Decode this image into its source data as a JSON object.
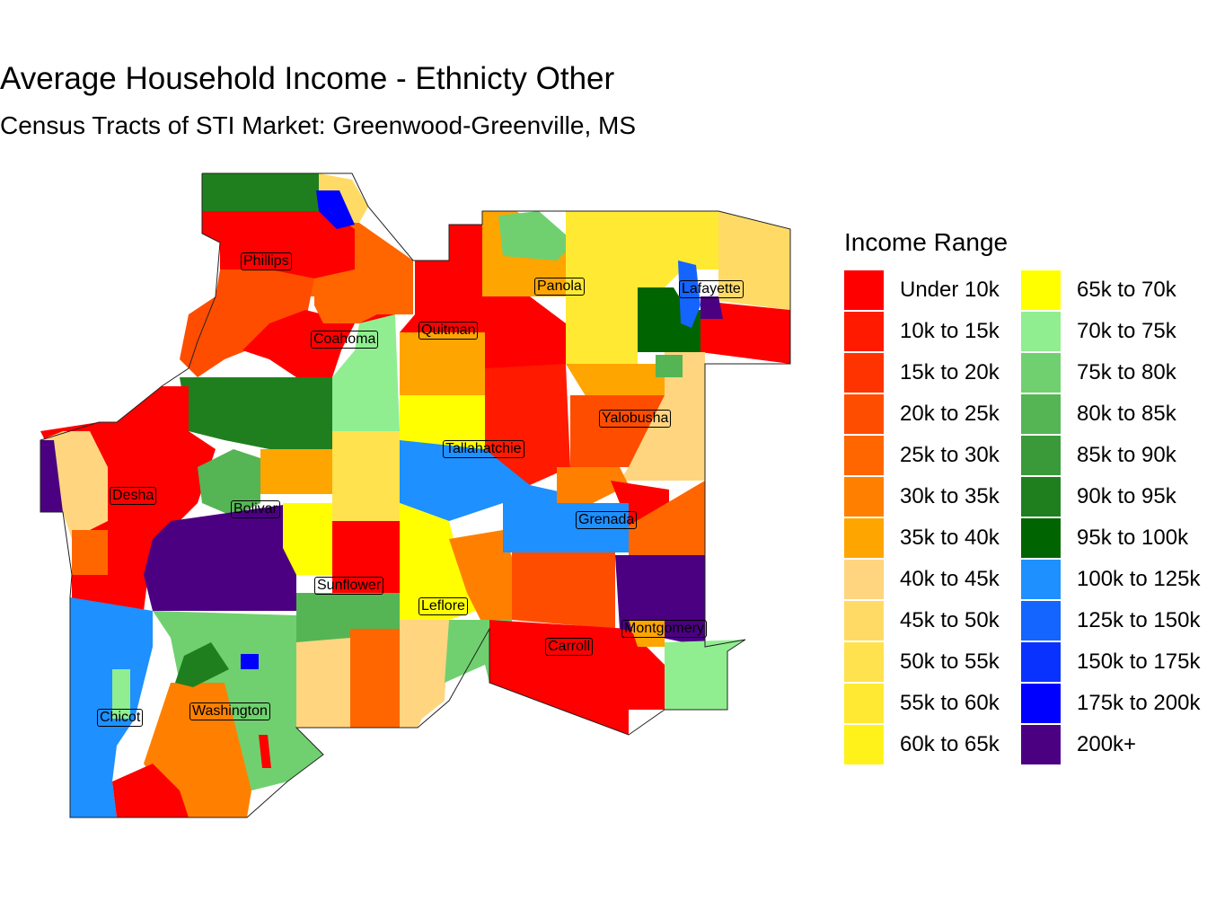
{
  "title": "Average Household Income - Ethnicty Other",
  "subtitle": "Census Tracts of STI Market: Greenwood-Greenville, MS",
  "legend": {
    "title": "Income Range",
    "items": [
      {
        "label": "Under 10k",
        "color": "#FF0000"
      },
      {
        "label": "10k to 15k",
        "color": "#FF1A00"
      },
      {
        "label": "15k to 20k",
        "color": "#FF3300"
      },
      {
        "label": "20k to 25k",
        "color": "#FF4D00"
      },
      {
        "label": "25k to 30k",
        "color": "#FF6600"
      },
      {
        "label": "30k to 35k",
        "color": "#FF8000"
      },
      {
        "label": "35k to 40k",
        "color": "#FFA500"
      },
      {
        "label": "40k to 45k",
        "color": "#FFD580"
      },
      {
        "label": "45k to 50k",
        "color": "#FFDB66"
      },
      {
        "label": "50k to 55k",
        "color": "#FFE24D"
      },
      {
        "label": "55k to 60k",
        "color": "#FFE933"
      },
      {
        "label": "60k to 65k",
        "color": "#FFF21A"
      },
      {
        "label": "65k to 70k",
        "color": "#FFFF00"
      },
      {
        "label": "70k to 75k",
        "color": "#90EE90"
      },
      {
        "label": "75k to 80k",
        "color": "#70D070"
      },
      {
        "label": "80k to 85k",
        "color": "#55B555"
      },
      {
        "label": "85k to 90k",
        "color": "#3A9A3A"
      },
      {
        "label": "90k to 95k",
        "color": "#1F7F1F"
      },
      {
        "label": "95k to 100k",
        "color": "#006400"
      },
      {
        "label": "100k to 125k",
        "color": "#1E90FF"
      },
      {
        "label": "125k to 150k",
        "color": "#1464FF"
      },
      {
        "label": "150k to 175k",
        "color": "#0A32FF"
      },
      {
        "label": "175k to 200k",
        "color": "#0000FF"
      },
      {
        "label": "200k+",
        "color": "#4B0082"
      }
    ]
  },
  "counties": [
    {
      "name": "Phillips"
    },
    {
      "name": "Coahoma"
    },
    {
      "name": "Quitman"
    },
    {
      "name": "Panola"
    },
    {
      "name": "Lafayette"
    },
    {
      "name": "Yalobusha"
    },
    {
      "name": "Tallahatchie"
    },
    {
      "name": "Desha"
    },
    {
      "name": "Bolivar"
    },
    {
      "name": "Grenada"
    },
    {
      "name": "Sunflower"
    },
    {
      "name": "Leflore"
    },
    {
      "name": "Montgomery"
    },
    {
      "name": "Carroll"
    },
    {
      "name": "Chicot"
    },
    {
      "name": "Washington"
    }
  ]
}
